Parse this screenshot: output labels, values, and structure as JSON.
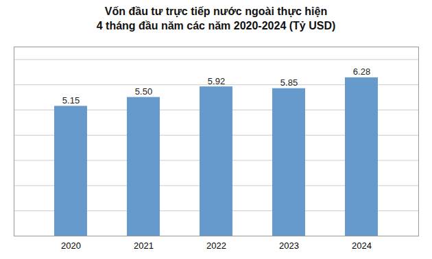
{
  "chart_data": {
    "type": "bar",
    "title": "Vốn đầu tư trực tiếp nước ngoài thực hiện",
    "subtitle": "4 tháng đầu năm các năm 2020-2024 (Tỷ USD)",
    "categories": [
      "2020",
      "2021",
      "2022",
      "2023",
      "2024"
    ],
    "values": [
      5.15,
      5.5,
      5.92,
      5.85,
      6.28
    ],
    "value_labels": [
      "5.15",
      "5.50",
      "5.92",
      "5.85",
      "6.28"
    ],
    "data_labels": true,
    "color": "#6699cc",
    "ylim": [
      0,
      7.5
    ],
    "yticks": [
      1,
      2,
      3,
      4,
      5,
      6,
      7
    ],
    "grid": true,
    "tick_labels": "x"
  }
}
